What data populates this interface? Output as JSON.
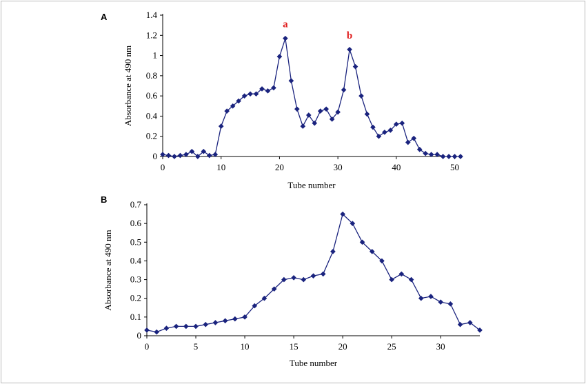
{
  "chart_data": [
    {
      "type": "line",
      "panel_label": "A",
      "xlabel": "Tube number",
      "ylabel": "Absorbance at 490 nm",
      "xlim": [
        0,
        51
      ],
      "ylim": [
        0,
        1.4
      ],
      "x_ticks": [
        0,
        10,
        20,
        30,
        40,
        50
      ],
      "y_ticks": [
        0,
        0.2,
        0.4,
        0.6,
        0.8,
        1,
        1.2,
        1.4
      ],
      "y_tick_labels": [
        "0",
        "0.2",
        "0.4",
        "0.6",
        "0.8",
        "1",
        "1.2",
        "1.4"
      ],
      "grid": false,
      "color": "#1a237e",
      "marker": "diamond",
      "x": [
        0,
        1,
        2,
        3,
        4,
        5,
        6,
        7,
        8,
        9,
        10,
        11,
        12,
        13,
        14,
        15,
        16,
        17,
        18,
        19,
        20,
        21,
        22,
        23,
        24,
        25,
        26,
        27,
        28,
        29,
        30,
        31,
        32,
        33,
        34,
        35,
        36,
        37,
        38,
        39,
        40,
        41,
        42,
        43,
        44,
        45,
        46,
        47,
        48,
        49,
        50,
        51
      ],
      "y": [
        0.02,
        0.01,
        0.0,
        0.01,
        0.02,
        0.05,
        0.0,
        0.05,
        0.01,
        0.02,
        0.3,
        0.45,
        0.5,
        0.55,
        0.6,
        0.62,
        0.62,
        0.67,
        0.65,
        0.68,
        0.99,
        1.17,
        0.75,
        0.47,
        0.3,
        0.41,
        0.33,
        0.45,
        0.47,
        0.37,
        0.44,
        0.66,
        1.06,
        0.89,
        0.6,
        0.42,
        0.29,
        0.2,
        0.24,
        0.26,
        0.32,
        0.33,
        0.14,
        0.18,
        0.07,
        0.03,
        0.02,
        0.02,
        0.0,
        0.0,
        0.0,
        0.0
      ],
      "annotations": [
        {
          "text": "a",
          "x": 21,
          "y": 1.17
        },
        {
          "text": "b",
          "x": 32,
          "y": 1.06
        }
      ]
    },
    {
      "type": "line",
      "panel_label": "B",
      "xlabel": "Tube number",
      "ylabel": "Absorbance at 490 nm",
      "xlim": [
        0,
        34
      ],
      "ylim": [
        0,
        0.7
      ],
      "x_ticks": [
        0,
        5,
        10,
        15,
        20,
        25,
        30
      ],
      "y_ticks": [
        0,
        0.1,
        0.2,
        0.3,
        0.4,
        0.5,
        0.6,
        0.7
      ],
      "y_tick_labels": [
        "0",
        "0.1",
        "0.2",
        "0.3",
        "0.4",
        "0.5",
        "0.6",
        "0.7"
      ],
      "grid": false,
      "color": "#1a237e",
      "marker": "diamond",
      "x": [
        0,
        1,
        2,
        3,
        4,
        5,
        6,
        7,
        8,
        9,
        10,
        11,
        12,
        13,
        14,
        15,
        16,
        17,
        18,
        19,
        20,
        21,
        22,
        23,
        24,
        25,
        26,
        27,
        28,
        29,
        30,
        31,
        32,
        33,
        34
      ],
      "y": [
        0.03,
        0.02,
        0.04,
        0.05,
        0.05,
        0.05,
        0.06,
        0.07,
        0.08,
        0.09,
        0.1,
        0.16,
        0.2,
        0.25,
        0.3,
        0.31,
        0.3,
        0.32,
        0.33,
        0.45,
        0.65,
        0.6,
        0.5,
        0.45,
        0.4,
        0.3,
        0.33,
        0.3,
        0.2,
        0.21,
        0.18,
        0.17,
        0.06,
        0.07,
        0.03
      ]
    }
  ]
}
